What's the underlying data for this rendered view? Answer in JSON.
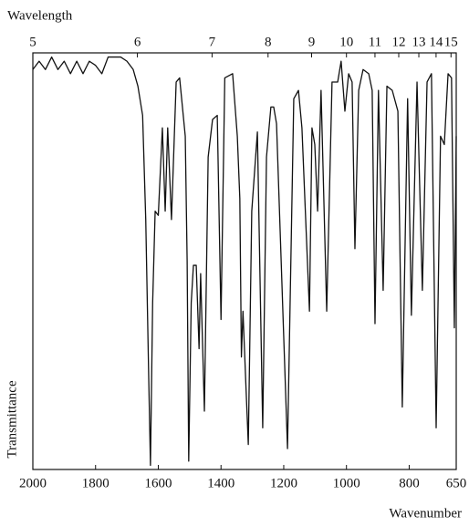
{
  "chart_data": {
    "type": "line",
    "x_label": "Wavenumber",
    "x2_label": "Wavelength",
    "y_label": "Transmittance",
    "xlim": [
      2000,
      650
    ],
    "xticks": [
      2000,
      1800,
      1600,
      1400,
      1200,
      1000,
      800,
      650
    ],
    "x2ticks": [
      5,
      6,
      7,
      8,
      9,
      10,
      11,
      12,
      13,
      14,
      15
    ],
    "ylim": [
      0,
      100
    ],
    "grid": false,
    "x": [
      2000,
      1980,
      1960,
      1940,
      1920,
      1900,
      1880,
      1860,
      1840,
      1820,
      1800,
      1780,
      1760,
      1740,
      1720,
      1700,
      1680,
      1665,
      1650,
      1640,
      1630,
      1625,
      1618,
      1610,
      1600,
      1587,
      1578,
      1570,
      1558,
      1543,
      1532,
      1514,
      1508,
      1503,
      1495,
      1488,
      1479,
      1470,
      1465,
      1453,
      1441,
      1427,
      1412,
      1400,
      1388,
      1363,
      1348,
      1340,
      1335,
      1330,
      1320,
      1313,
      1302,
      1284,
      1267,
      1255,
      1241,
      1232,
      1223,
      1188,
      1168,
      1153,
      1142,
      1118,
      1110,
      1101,
      1092,
      1081,
      1063,
      1046,
      1028,
      1017,
      1005,
      993,
      982,
      973,
      961,
      947,
      929,
      918,
      909,
      898,
      883,
      871,
      854,
      836,
      822,
      805,
      793,
      775,
      758,
      743,
      729,
      714,
      700,
      688,
      676,
      665,
      656,
      650
    ],
    "series": [
      {
        "color": "#111111",
        "values": [
          96,
          98,
          96,
          99,
          96,
          98,
          95,
          98,
          95,
          98,
          97,
          95,
          99,
          99,
          99,
          98,
          96,
          92,
          85,
          60,
          20,
          1,
          40,
          62,
          61,
          82,
          62,
          82,
          60,
          93,
          94,
          80,
          50,
          2,
          40,
          49,
          49,
          29,
          47,
          14,
          75,
          84,
          85,
          36,
          94,
          95,
          80,
          65,
          27,
          38,
          19,
          6,
          62,
          81,
          10,
          75,
          87,
          87,
          83,
          5,
          89,
          91,
          82,
          38,
          82,
          78,
          62,
          91,
          38,
          93,
          93,
          98,
          86,
          95,
          93,
          53,
          91,
          96,
          95,
          91,
          35,
          91,
          43,
          92,
          91,
          86,
          15,
          89,
          37,
          93,
          43,
          93,
          95,
          10,
          80,
          78,
          95,
          94,
          34,
          80
        ]
      }
    ]
  }
}
